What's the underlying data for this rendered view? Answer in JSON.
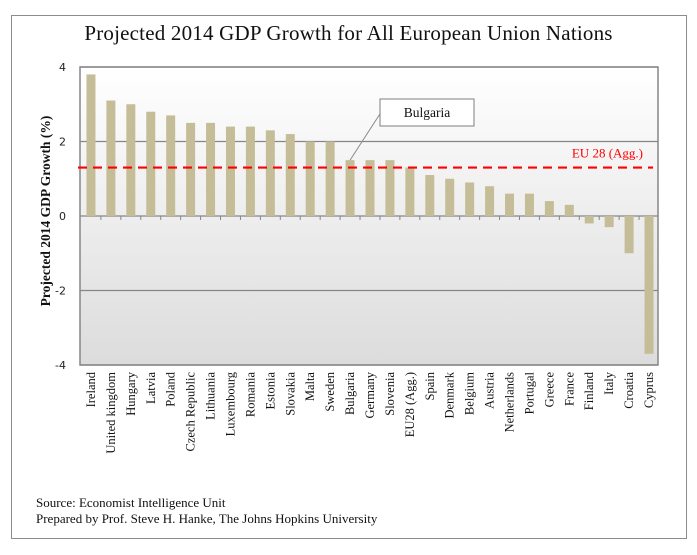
{
  "chart_data": {
    "type": "bar",
    "title": "Projected 2014 GDP Growth for All European Union Nations",
    "xlabel": "",
    "ylabel": "Projected 2014 GDP Growth (%)",
    "ylim": [
      -4,
      4
    ],
    "yticks": [
      -4,
      -2,
      0,
      2,
      4
    ],
    "ytick_labels": [
      "-4",
      "-2",
      "0",
      "2",
      "4"
    ],
    "grid": true,
    "categories": [
      "Ireland",
      "United kingdom",
      "Hungary",
      "Latvia",
      "Poland",
      "Czech Republic",
      "Lithuania",
      "Luxembourg",
      "Romania",
      "Estonia",
      "Slovakia",
      "Malta",
      "Sweden",
      "Bulgaria",
      "Germany",
      "Slovenia",
      "EU28 (Agg.)",
      "Spain",
      "Denmark",
      "Belgium",
      "Austria",
      "Netherlands",
      "Portugal",
      "Greece",
      "France",
      "Finland",
      "Italy",
      "Croatia",
      "Cyprus"
    ],
    "values": [
      3.8,
      3.1,
      3.0,
      2.8,
      2.7,
      2.5,
      2.5,
      2.4,
      2.4,
      2.3,
      2.2,
      2.0,
      2.0,
      1.5,
      1.5,
      1.5,
      1.3,
      1.1,
      1.0,
      0.9,
      0.8,
      0.6,
      0.6,
      0.4,
      0.3,
      -0.2,
      -0.3,
      -1.0,
      -3.7
    ],
    "reference_line": {
      "label": "EU 28 (Agg.)",
      "value": 1.3,
      "style": "dashed",
      "color": "#ff0000"
    },
    "annotation": {
      "text": "Bulgaria",
      "target": "Bulgaria"
    },
    "bar_color": "#c5bd97"
  },
  "footer": {
    "source": "Source:  Economist Intelligence Unit",
    "prepared_by": "Prepared by Prof.  Steve H. Hanke, The Johns Hopkins University"
  }
}
